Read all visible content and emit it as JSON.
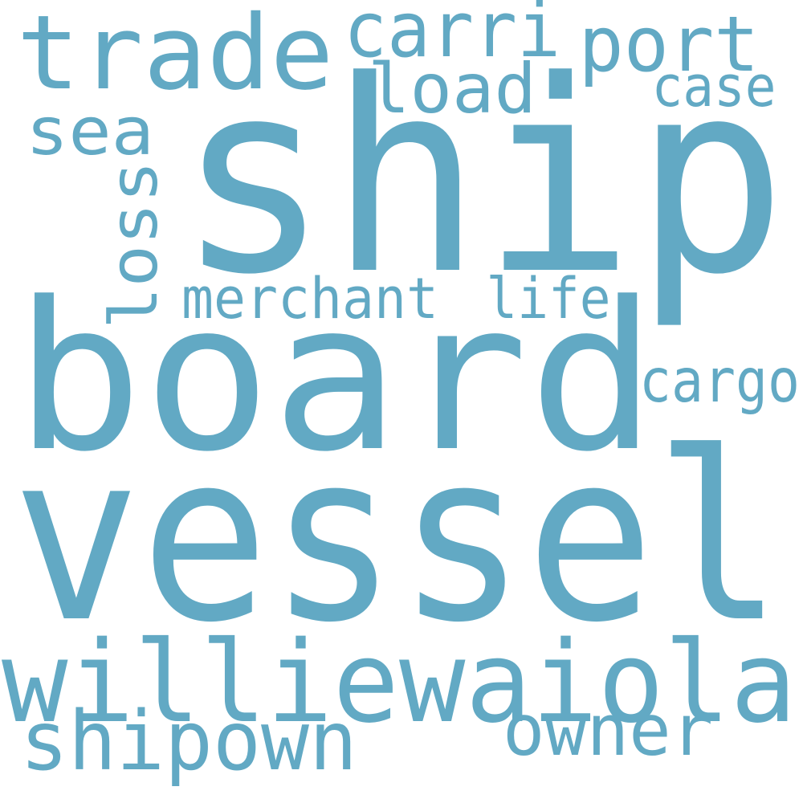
{
  "style": {
    "background": "#ffffff",
    "word_color": "#62a9c4"
  },
  "words": {
    "ship": "ship",
    "board": "board",
    "vessel": "vessel",
    "williewaiola": "williewaiola",
    "trade": "trade",
    "carri": "carri",
    "port": "port",
    "load": "load",
    "sea": "sea",
    "case": "case",
    "loss": "loss",
    "merchant": "merchant",
    "life": "life",
    "cargo": "cargo",
    "shipown": "shipown",
    "owner": "owner"
  }
}
